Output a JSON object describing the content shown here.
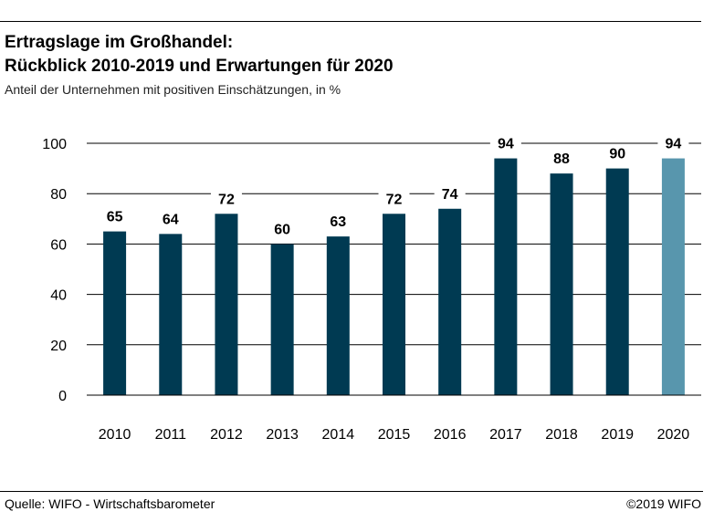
{
  "header": {
    "title_line1": "Ertragslage im Großhandel:",
    "title_line2": "Rückblick 2010-2019 und Erwartungen für 2020",
    "subtitle": "Anteil der Unternehmen mit positiven Einschätzungen, in %"
  },
  "footer": {
    "source": "Quelle: WIFO - Wirtschaftsbarometer",
    "copyright": "©2019 WIFO"
  },
  "colors": {
    "bar": "#003a52",
    "bar_highlight": "#5896ad",
    "grid": "#000000"
  },
  "chart_data": {
    "type": "bar",
    "title": "Ertragslage im Großhandel: Rückblick 2010-2019 und Erwartungen für 2020",
    "subtitle": "Anteil der Unternehmen mit positiven Einschätzungen, in %",
    "categories": [
      "2010",
      "2011",
      "2012",
      "2013",
      "2014",
      "2015",
      "2016",
      "2017",
      "2018",
      "2019",
      "2020"
    ],
    "values": [
      65,
      64,
      72,
      60,
      63,
      72,
      74,
      94,
      88,
      90,
      94
    ],
    "data_labels": [
      "65",
      "64",
      "72",
      "60",
      "63",
      "72",
      "74",
      "94",
      "88",
      "90",
      "94"
    ],
    "highlight_category": "2020",
    "ylim": [
      0,
      100
    ],
    "yticks": [
      0,
      20,
      40,
      60,
      80,
      100
    ],
    "grid": true,
    "xlabel": "",
    "ylabel": ""
  }
}
